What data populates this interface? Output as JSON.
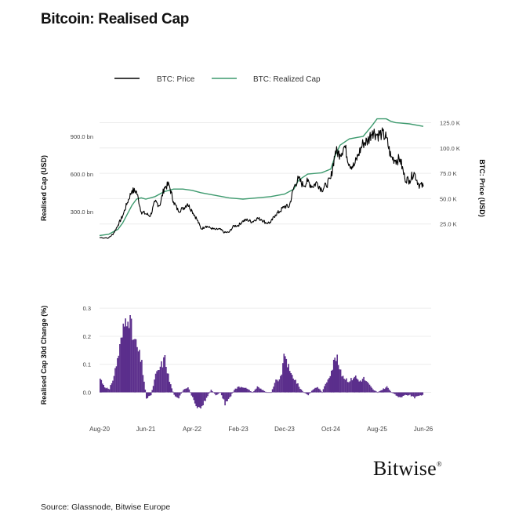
{
  "title": "Bitcoin: Realised Cap",
  "source": "Source: Glassnode, Bitwise Europe",
  "logo_text": "Bitwise",
  "logo_mark": "®",
  "colors": {
    "price": "#000000",
    "realized_cap": "#3d9a6e",
    "change_bars": "#5b2e8c",
    "grid": "#ececec",
    "axis_text": "#444444"
  },
  "chart_data": [
    {
      "type": "line",
      "legend_position": "top",
      "grid": true,
      "xlabel": "",
      "y_left_label": "Realised Cap (USD)",
      "y_right_label": "BTC: Price (USD)",
      "y_left_ticks": [
        "300.0 bn",
        "600.0 bn",
        "900.0 bn"
      ],
      "y_left_tick_values": [
        300,
        600,
        900
      ],
      "y_right_ticks": [
        "25.0 K",
        "50.0 K",
        "75.0 K",
        "100.0 K",
        "125.0 K"
      ],
      "y_right_tick_values": [
        25,
        50,
        75,
        100,
        125
      ],
      "y_left_range_bn": [
        0,
        1050
      ],
      "y_right_range_k": [
        0,
        130
      ],
      "x_range": [
        "2020-08",
        "2026-06"
      ],
      "series": [
        {
          "name": "BTC: Price",
          "axis": "right",
          "dates": [
            "2020-08",
            "2020-10",
            "2020-11",
            "2020-12",
            "2021-01",
            "2021-02",
            "2021-03",
            "2021-04",
            "2021-05",
            "2021-06",
            "2021-07",
            "2021-08",
            "2021-09",
            "2021-10",
            "2021-11",
            "2021-12",
            "2022-01",
            "2022-02",
            "2022-03",
            "2022-04",
            "2022-05",
            "2022-06",
            "2022-07",
            "2022-08",
            "2022-09",
            "2022-10",
            "2022-11",
            "2022-12",
            "2023-01",
            "2023-02",
            "2023-03",
            "2023-04",
            "2023-05",
            "2023-06",
            "2023-07",
            "2023-08",
            "2023-09",
            "2023-10",
            "2023-11",
            "2023-12",
            "2024-01",
            "2024-02",
            "2024-03",
            "2024-04",
            "2024-05",
            "2024-06",
            "2024-07",
            "2024-08",
            "2024-09",
            "2024-10",
            "2024-11",
            "2024-12",
            "2025-01",
            "2025-02",
            "2025-03",
            "2025-04",
            "2025-05",
            "2025-06",
            "2025-07",
            "2025-08",
            "2025-09",
            "2025-10",
            "2025-11",
            "2025-12",
            "2026-01",
            "2026-02",
            "2026-03",
            "2026-04",
            "2026-05",
            "2026-06"
          ],
          "values": [
            11.5,
            11.3,
            15.5,
            24,
            33,
            46,
            58,
            57,
            37,
            35,
            33,
            47,
            43,
            61,
            64,
            47,
            38,
            40,
            45,
            38,
            30,
            20,
            23,
            21,
            19.5,
            20,
            16.5,
            16.8,
            23,
            23.5,
            28,
            29,
            27,
            30.5,
            29.5,
            26,
            26.5,
            34,
            37.5,
            42.5,
            42,
            61,
            70,
            63,
            67,
            62,
            66,
            59,
            63,
            70,
            97,
            94,
            102,
            84,
            82,
            94,
            105,
            107,
            117,
            113,
            114,
            110,
            91,
            88,
            89,
            70,
            68,
            76,
            64,
            62
          ]
        },
        {
          "name": "BTC: Realized Cap",
          "axis": "left",
          "dates": [
            "2020-08",
            "2020-10",
            "2020-12",
            "2021-01",
            "2021-02",
            "2021-03",
            "2021-04",
            "2021-05",
            "2021-06",
            "2021-08",
            "2021-10",
            "2021-12",
            "2022-02",
            "2022-04",
            "2022-06",
            "2022-09",
            "2022-12",
            "2023-03",
            "2023-06",
            "2023-09",
            "2023-12",
            "2024-02",
            "2024-03",
            "2024-05",
            "2024-08",
            "2024-10",
            "2024-11",
            "2024-12",
            "2025-02",
            "2025-05",
            "2025-07",
            "2025-08",
            "2025-10",
            "2025-11",
            "2025-12",
            "2026-03",
            "2026-06"
          ],
          "values": [
            110,
            120,
            160,
            210,
            280,
            350,
            400,
            410,
            400,
            420,
            460,
            480,
            480,
            470,
            450,
            430,
            410,
            400,
            410,
            420,
            440,
            480,
            550,
            600,
            610,
            640,
            750,
            830,
            880,
            900,
            990,
            1040,
            1040,
            1020,
            1010,
            1000,
            980
          ]
        }
      ]
    },
    {
      "type": "bar",
      "grid": true,
      "ylabel": "Realised Cap 30d Change (%)",
      "y_ticks": [
        "0.0",
        "0.1",
        "0.2",
        "0.3"
      ],
      "y_tick_values": [
        0,
        0.1,
        0.2,
        0.3
      ],
      "ylim": [
        -0.06,
        0.32
      ],
      "x_ticks": [
        "Aug-20",
        "Jun-21",
        "Apr-22",
        "Feb-23",
        "Dec-23",
        "Oct-24",
        "Aug-25",
        "Jun-26"
      ],
      "x_tick_dates": [
        "2020-08",
        "2021-06",
        "2022-04",
        "2023-02",
        "2023-12",
        "2024-10",
        "2025-08",
        "2026-06"
      ],
      "x_range": [
        "2020-08",
        "2026-06"
      ],
      "series": [
        {
          "name": "",
          "dates": [
            "2020-08",
            "2020-09",
            "2020-10",
            "2020-11",
            "2020-12",
            "2021-01",
            "2021-02",
            "2021-03",
            "2021-04",
            "2021-05",
            "2021-06",
            "2021-07",
            "2021-08",
            "2021-09",
            "2021-10",
            "2021-11",
            "2021-12",
            "2022-01",
            "2022-02",
            "2022-03",
            "2022-04",
            "2022-05",
            "2022-06",
            "2022-07",
            "2022-08",
            "2022-09",
            "2022-10",
            "2022-11",
            "2022-12",
            "2023-01",
            "2023-02",
            "2023-03",
            "2023-04",
            "2023-05",
            "2023-06",
            "2023-07",
            "2023-08",
            "2023-09",
            "2023-10",
            "2023-11",
            "2023-12",
            "2024-01",
            "2024-02",
            "2024-03",
            "2024-04",
            "2024-05",
            "2024-06",
            "2024-07",
            "2024-08",
            "2024-09",
            "2024-10",
            "2024-11",
            "2024-12",
            "2025-01",
            "2025-02",
            "2025-03",
            "2025-04",
            "2025-05",
            "2025-06",
            "2025-07",
            "2025-08",
            "2025-09",
            "2025-10",
            "2025-11",
            "2025-12",
            "2026-01",
            "2026-02",
            "2026-03",
            "2026-04",
            "2026-05",
            "2026-06"
          ],
          "values": [
            0.05,
            0.02,
            0.01,
            0.06,
            0.14,
            0.22,
            0.3,
            0.2,
            0.16,
            0.1,
            -0.02,
            -0.01,
            0.06,
            0.09,
            0.12,
            0.04,
            -0.01,
            -0.02,
            0.01,
            0.02,
            -0.02,
            -0.05,
            -0.05,
            -0.02,
            0.01,
            -0.01,
            0.0,
            -0.04,
            -0.02,
            0.01,
            0.02,
            0.02,
            0.01,
            0.0,
            0.02,
            0.01,
            0.0,
            0.0,
            0.04,
            0.05,
            0.14,
            0.07,
            0.05,
            0.02,
            0.0,
            -0.01,
            0.01,
            0.02,
            0.0,
            0.04,
            0.08,
            0.13,
            0.07,
            0.05,
            0.04,
            0.06,
            0.04,
            0.05,
            0.03,
            0.01,
            0.0,
            0.01,
            0.02,
            0.0,
            -0.01,
            -0.02,
            -0.01,
            -0.01,
            -0.02,
            -0.01,
            -0.01
          ]
        }
      ]
    }
  ]
}
